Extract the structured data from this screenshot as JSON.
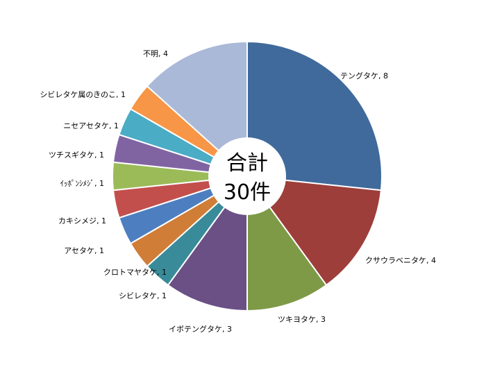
{
  "chart_data": {
    "type": "pie",
    "donut": true,
    "legend": "none",
    "center_label": [
      "合計",
      "30件"
    ],
    "slices": [
      {
        "label": "テングタケ",
        "value": 8,
        "color": "#406a9b",
        "label_text": "テングタケ, 8"
      },
      {
        "label": "クサウラベニタケ",
        "value": 4,
        "color": "#9d3e3b",
        "label_text": "クサウラベニタケ, 4"
      },
      {
        "label": "ツキヨタケ",
        "value": 3,
        "color": "#7e9a47",
        "label_text": "ツキヨタケ, 3"
      },
      {
        "label": "イボテングタケ",
        "value": 3,
        "color": "#6a5085",
        "label_text": "イボテングタケ, 3"
      },
      {
        "label": "シビレタケ",
        "value": 1,
        "color": "#398b99",
        "label_text": "シビレタケ, 1"
      },
      {
        "label": "クロトマヤタケ",
        "value": 1,
        "color": "#d07d37",
        "label_text": "クロトマヤタケ, 1"
      },
      {
        "label": "アセタケ",
        "value": 1,
        "color": "#4d7fc0",
        "label_text": "アセタケ, 1"
      },
      {
        "label": "カキシメジ",
        "value": 1,
        "color": "#c34f4d",
        "label_text": "カキシメジ, 1"
      },
      {
        "label": "ｲｯﾎﾟﾝｼﾒｼﾞ",
        "value": 1,
        "color": "#9bbb59",
        "label_text": "ｲｯﾎﾟﾝｼﾒｼﾞ, 1"
      },
      {
        "label": "ツチスギタケ",
        "value": 1,
        "color": "#8064a2",
        "label_text": "ツチスギタケ, 1"
      },
      {
        "label": "ニセアセタケ",
        "value": 1,
        "color": "#4bacc6",
        "label_text": "ニセアセタケ, 1"
      },
      {
        "label": "シビレタケ属のきのこ",
        "value": 1,
        "color": "#f79646",
        "label_text": "シビレタケ属のきのこ, 1"
      },
      {
        "label": "不明",
        "value": 4,
        "color": "#aab9d8",
        "label_text": "不明, 4"
      }
    ]
  }
}
